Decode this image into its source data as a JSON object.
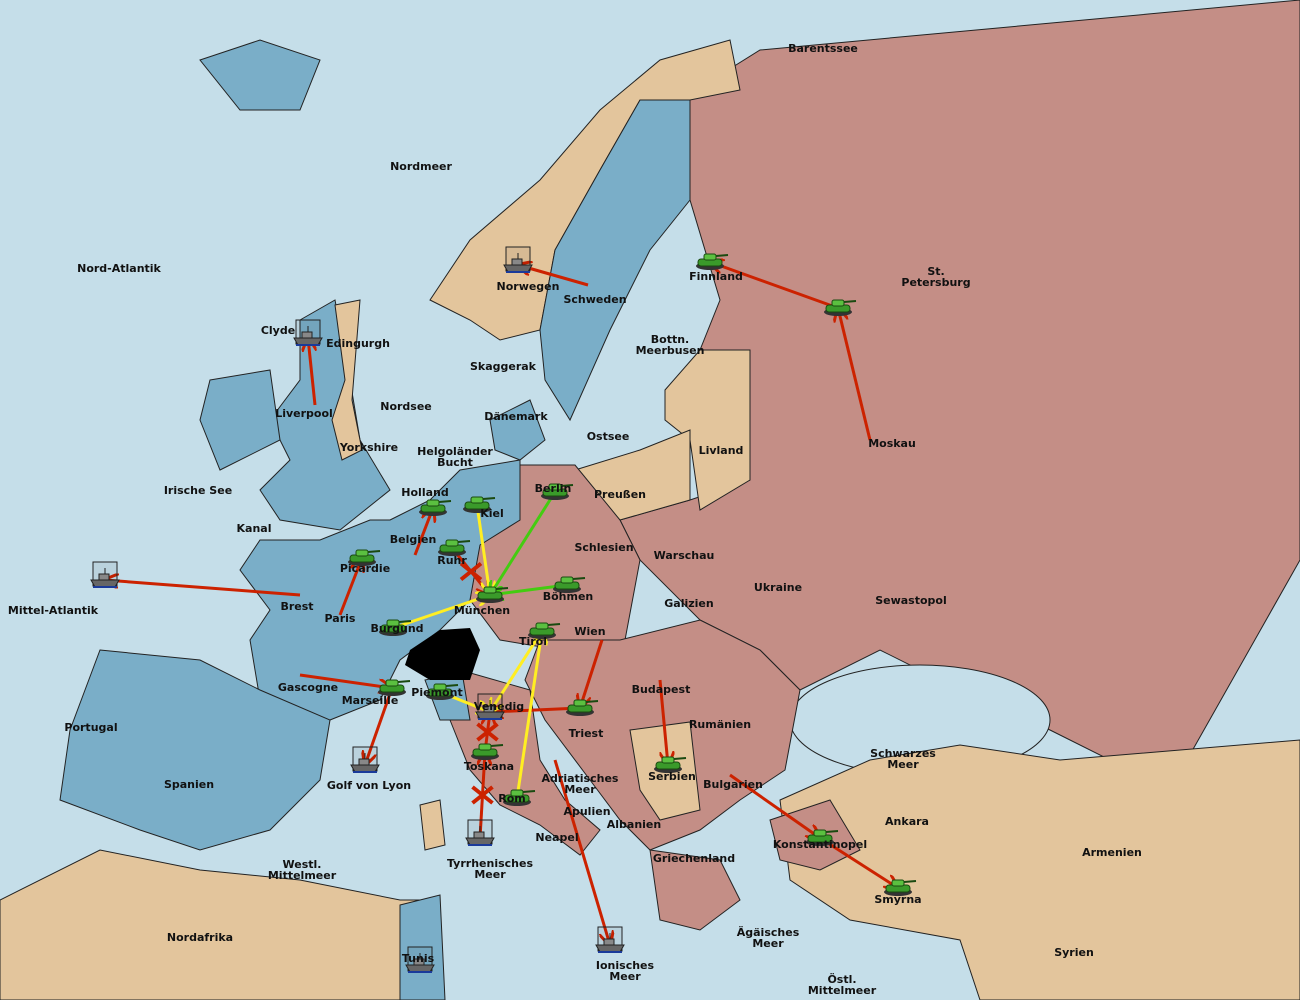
{
  "colors": {
    "sea": "#c5dee9",
    "england_france": "#7aaec8",
    "russia_germany_austria_italy": "#c48e86",
    "neutral": "#e3c59c",
    "move_order": "#cc2200",
    "support_order_yellow": "#ffee22",
    "support_order_green": "#44cc11",
    "army": "#3a9a2a"
  },
  "provinces": [
    "Barentssee",
    "Nordmeer",
    "Nord-Atlantik",
    "St. Petersburg",
    "Finnland",
    "Norwegen",
    "Schweden",
    "Bottn. Meerbusen",
    "Clyde",
    "Edingurgh",
    "Skaggerak",
    "Liverpool",
    "Nordsee",
    "Dänemark",
    "Ostsee",
    "Livland",
    "Yorkshire",
    "Helgoländer Bucht",
    "Moskau",
    "Irische See",
    "Holland",
    "Berlin",
    "Preußen",
    "Kiel",
    "Kanal",
    "Belgien",
    "Schlesien",
    "Warschau",
    "Ruhr",
    "Picardie",
    "Ukraine",
    "Mittel-Atlantik",
    "Brest",
    "München",
    "Böhmen",
    "Sewastopol",
    "Galizien",
    "Paris",
    "Burgund",
    "Wien",
    "Tirol",
    "Gascogne",
    "Piemont",
    "Budapest",
    "Marseille",
    "Venedig",
    "Portugal",
    "Rumänien",
    "Triest",
    "Toskana",
    "Schwarzes Meer",
    "Adriatisches Meer",
    "Serbien",
    "Spanien",
    "Golf von Lyon",
    "Bulgarien",
    "Rom",
    "Apulien",
    "Ankara",
    "Albanien",
    "Neapel",
    "Konstantinopel",
    "Armenien",
    "Westl. Mittelmeer",
    "Tyrrhenisches Meer",
    "Griechenland",
    "Smyrna",
    "Nordafrika",
    "Ägäisches Meer",
    "Syrien",
    "Tunis",
    "Ionisches Meer",
    "Östl. Mittelmeer"
  ],
  "units": [
    {
      "type": "army",
      "province": "Finnland"
    },
    {
      "type": "army",
      "province": "St. Petersburg"
    },
    {
      "type": "fleet",
      "province": "Norwegen"
    },
    {
      "type": "fleet",
      "province": "Clyde"
    },
    {
      "type": "fleet",
      "province": "Mittel-Atlantik"
    },
    {
      "type": "army",
      "province": "Holland"
    },
    {
      "type": "army",
      "province": "Kiel"
    },
    {
      "type": "army",
      "province": "Ruhr"
    },
    {
      "type": "army",
      "province": "Picardie"
    },
    {
      "type": "army",
      "province": "Berlin"
    },
    {
      "type": "army",
      "province": "München"
    },
    {
      "type": "army",
      "province": "Böhmen"
    },
    {
      "type": "army",
      "province": "Burgund"
    },
    {
      "type": "army",
      "province": "Tirol"
    },
    {
      "type": "army",
      "province": "Marseille"
    },
    {
      "type": "army",
      "province": "Piemont"
    },
    {
      "type": "fleet",
      "province": "Venedig"
    },
    {
      "type": "army",
      "province": "Triest"
    },
    {
      "type": "army",
      "province": "Toskana"
    },
    {
      "type": "army",
      "province": "Rom"
    },
    {
      "type": "fleet",
      "province": "Golf von Lyon"
    },
    {
      "type": "fleet",
      "province": "Tyrrhenisches Meer"
    },
    {
      "type": "army",
      "province": "Serbien"
    },
    {
      "type": "army",
      "province": "Konstantinopel"
    },
    {
      "type": "army",
      "province": "Smyrna"
    },
    {
      "type": "fleet",
      "province": "Ionisches Meer"
    },
    {
      "type": "fleet",
      "province": "Tunis"
    }
  ],
  "orders": [
    {
      "from": "Schweden",
      "to": "Norwegen",
      "kind": "move"
    },
    {
      "from": "Liverpool",
      "to": "Clyde",
      "kind": "move"
    },
    {
      "from": "Brest",
      "to": "Mittel-Atlantik",
      "kind": "move"
    },
    {
      "from": "St. Petersburg",
      "to": "Finnland",
      "kind": "move"
    },
    {
      "from": "Moskau",
      "to": "St. Petersburg",
      "kind": "move"
    },
    {
      "from": "Belgien",
      "to": "Holland",
      "kind": "move"
    },
    {
      "from": "Paris",
      "to": "Picardie",
      "kind": "move"
    },
    {
      "from": "Ruhr",
      "to": "München",
      "kind": "move",
      "failed": true
    },
    {
      "from": "Gascogne",
      "to": "Marseille",
      "kind": "move"
    },
    {
      "from": "Marseille",
      "to": "Golf von Lyon",
      "kind": "move"
    },
    {
      "from": "Wien",
      "to": "Triest",
      "kind": "move"
    },
    {
      "from": "Triest",
      "to": "Venedig",
      "kind": "move"
    },
    {
      "from": "Budapest",
      "to": "Serbien",
      "kind": "move"
    },
    {
      "from": "Bulgarien",
      "to": "Konstantinopel",
      "kind": "move"
    },
    {
      "from": "Konstantinopel",
      "to": "Smyrna",
      "kind": "move"
    },
    {
      "from": "Adriatisches Meer",
      "to": "Ionisches Meer",
      "kind": "move"
    },
    {
      "from": "Toskana",
      "to": "Venedig",
      "kind": "move",
      "failed": true
    },
    {
      "from": "Tyrrhenisches Meer",
      "to": "Toskana",
      "kind": "move",
      "failed": true
    },
    {
      "from": "Kiel",
      "to": "München",
      "kind": "support-yellow"
    },
    {
      "from": "Burgund",
      "to": "München",
      "kind": "support-yellow"
    },
    {
      "from": "Piemont",
      "to": "Venedig",
      "kind": "support-yellow"
    },
    {
      "from": "Tirol",
      "to": "Venedig",
      "kind": "support-yellow"
    },
    {
      "from": "Rom",
      "to": "Tirol",
      "kind": "support-yellow"
    },
    {
      "from": "Berlin",
      "to": "München",
      "kind": "support-green"
    },
    {
      "from": "Böhmen",
      "to": "München",
      "kind": "support-green"
    }
  ]
}
